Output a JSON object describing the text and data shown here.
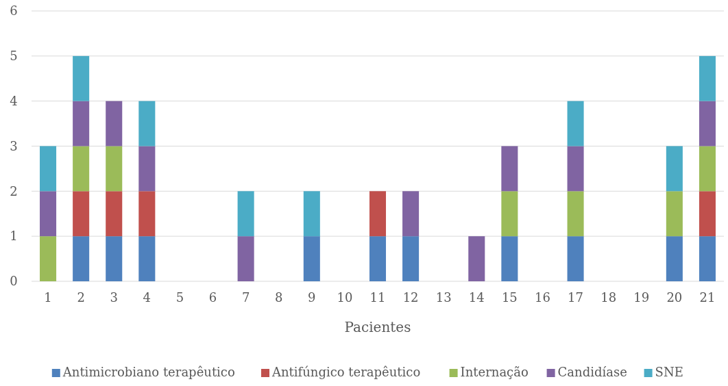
{
  "chart_data": {
    "type": "bar",
    "stacked": true,
    "xlabel": "Pacientes",
    "categories": [
      "1",
      "2",
      "3",
      "4",
      "5",
      "6",
      "7",
      "8",
      "9",
      "10",
      "11",
      "12",
      "13",
      "14",
      "15",
      "16",
      "17",
      "18",
      "19",
      "20",
      "21"
    ],
    "series": [
      {
        "name": "Antimicrobiano terapêutico",
        "color": "#4f81bd",
        "values": [
          0,
          1,
          1,
          1,
          0,
          0,
          0,
          0,
          1,
          0,
          1,
          1,
          0,
          0,
          1,
          0,
          1,
          0,
          0,
          1,
          1
        ]
      },
      {
        "name": "Antifúngico terapêutico",
        "color": "#c0504d",
        "values": [
          0,
          1,
          1,
          1,
          0,
          0,
          0,
          0,
          0,
          0,
          1,
          0,
          0,
          0,
          0,
          0,
          0,
          0,
          0,
          0,
          1
        ]
      },
      {
        "name": "Internação",
        "color": "#9bbb59",
        "values": [
          1,
          1,
          1,
          0,
          0,
          0,
          0,
          0,
          0,
          0,
          0,
          0,
          0,
          0,
          1,
          0,
          1,
          0,
          0,
          1,
          1
        ]
      },
      {
        "name": "Candidíase",
        "color": "#8064a2",
        "values": [
          1,
          1,
          1,
          1,
          0,
          0,
          1,
          0,
          0,
          0,
          0,
          1,
          0,
          1,
          1,
          0,
          1,
          0,
          0,
          0,
          1
        ]
      },
      {
        "name": "SNE",
        "color": "#4bacc6",
        "values": [
          1,
          1,
          0,
          1,
          0,
          0,
          1,
          0,
          1,
          0,
          0,
          0,
          0,
          0,
          0,
          0,
          1,
          0,
          0,
          1,
          1
        ]
      }
    ],
    "ylim": [
      0,
      6
    ],
    "yticks": [
      0,
      1,
      2,
      3,
      4,
      5,
      6
    ],
    "grid": "y",
    "legend": "bottom"
  }
}
